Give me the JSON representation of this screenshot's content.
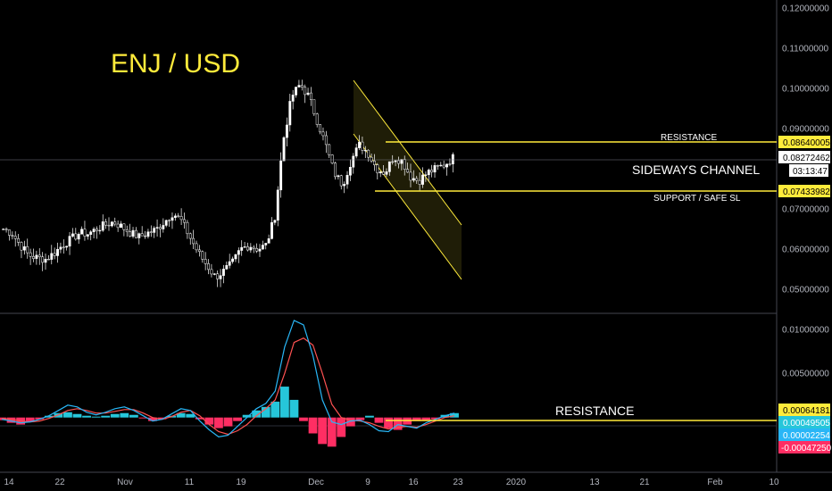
{
  "chart_data": [
    {
      "type": "candlestick",
      "title": "ENJ / USD",
      "ylim": [
        0.044,
        0.122
      ],
      "y_ticks": [
        "0.12000000",
        "0.11000000",
        "0.10000000",
        "0.09000000",
        "0.07000000",
        "0.06000000",
        "0.05000000"
      ],
      "x_ticks": [
        "14",
        "22",
        "Nov",
        "11",
        "19",
        "Dec",
        "9",
        "16",
        "23",
        "2020",
        "13",
        "21",
        "Feb",
        "10"
      ],
      "series": [
        {
          "values": [
            0.065,
            0.064,
            0.061,
            0.0585,
            0.0578,
            0.0575,
            0.059,
            0.061,
            0.0625,
            0.064,
            0.0638,
            0.065,
            0.066,
            0.0668,
            0.0655,
            0.064,
            0.063,
            0.064,
            0.0648,
            0.0668,
            0.069,
            0.067,
            0.063,
            0.059,
            0.056,
            0.053,
            0.0545,
            0.0565,
            0.06,
            0.061,
            0.06,
            0.061,
            0.068,
            0.087,
            0.098,
            0.101,
            0.098,
            0.092,
            0.086,
            0.079,
            0.076,
            0.082,
            0.086,
            0.084,
            0.08,
            0.079,
            0.083,
            0.082,
            0.078,
            0.077,
            0.079,
            0.08,
            0.081,
            0.0827
          ]
        }
      ],
      "levels": {
        "resistance_price": "0.08640005",
        "last_price": "0.08272462",
        "countdown": "03:13:47",
        "support_price": "0.07433982"
      },
      "annotations": {
        "resistance": "RESISTANCE",
        "channel": "SIDEWAYS CHANNEL",
        "support": "SUPPORT / SAFE SL"
      }
    },
    {
      "type": "histogram",
      "ylim": [
        -0.0062,
        0.0118
      ],
      "y_ticks": [
        "0.01000000",
        "0.00500000"
      ],
      "tags": [
        "0.00064181",
        "0.00049505",
        "0.00002254",
        "-0.00047250"
      ],
      "annotation": "RESISTANCE",
      "histogram": [
        -0.0003,
        -0.0006,
        -0.0008,
        -0.0005,
        -0.0002,
        0.0002,
        0.0005,
        0.0006,
        0.0004,
        0.0002,
        0.0001,
        0.0002,
        0.0004,
        0.0005,
        0.0003,
        -0.0001,
        -0.0004,
        -0.0002,
        0.0002,
        0.0005,
        0.0004,
        -0.0002,
        -0.0008,
        -0.0012,
        -0.001,
        -0.0004,
        0.0003,
        0.0008,
        0.0012,
        0.0018,
        0.0035,
        0.002,
        -0.0004,
        -0.0018,
        -0.003,
        -0.0033,
        -0.0022,
        -0.001,
        -0.0003,
        0.0002,
        -0.0006,
        -0.0012,
        -0.0014,
        -0.0008,
        -0.0004,
        -0.0003,
        -0.0002,
        0.0003,
        0.0005
      ],
      "macd": [
        -0.0002,
        -0.0004,
        -0.0006,
        -0.0005,
        -0.0002,
        0.0002,
        0.0008,
        0.0014,
        0.0012,
        0.0006,
        0.0003,
        0.0006,
        0.001,
        0.0012,
        0.0008,
        0.0002,
        -0.0004,
        -0.0002,
        0.0004,
        0.001,
        0.0008,
        -0.0004,
        -0.0014,
        -0.0022,
        -0.002,
        -0.001,
        0.0,
        0.001,
        0.0016,
        0.003,
        0.008,
        0.011,
        0.0105,
        0.007,
        0.002,
        -0.0005,
        -0.0008,
        -0.0004,
        -0.0003,
        -0.0008,
        -0.0015,
        -0.0016,
        -0.0008,
        -0.001,
        -0.0012,
        -0.0006,
        -0.0002,
        0.0002,
        0.0005
      ],
      "signal": [
        -0.0001,
        -0.0002,
        -0.0004,
        -0.0005,
        -0.0004,
        -0.0001,
        0.0003,
        0.0008,
        0.001,
        0.0008,
        0.0005,
        0.0005,
        0.0007,
        0.0009,
        0.0009,
        0.0005,
        0.0,
        -0.0002,
        0.0001,
        0.0006,
        0.0008,
        0.0002,
        -0.0008,
        -0.0016,
        -0.0019,
        -0.0015,
        -0.0008,
        0.0002,
        0.001,
        0.002,
        0.005,
        0.0085,
        0.009,
        0.0082,
        0.005,
        0.0015,
        0.0,
        -0.0003,
        -0.0004,
        -0.0006,
        -0.001,
        -0.0013,
        -0.0011,
        -0.001,
        -0.0011,
        -0.0008,
        -0.0004,
        0.0,
        0.0002
      ]
    }
  ],
  "colors": {
    "background": "#000000",
    "candle": "#ffffff",
    "highlight": "#ffeb3b",
    "hist_positive": "#26c6da",
    "hist_negative": "#ff2e63",
    "macd_line": "#29b6f6",
    "signal_line": "#ff5252",
    "grid": "#2a2e39",
    "axis_text": "#b2b5be",
    "annotation_text": "#ffffff"
  }
}
